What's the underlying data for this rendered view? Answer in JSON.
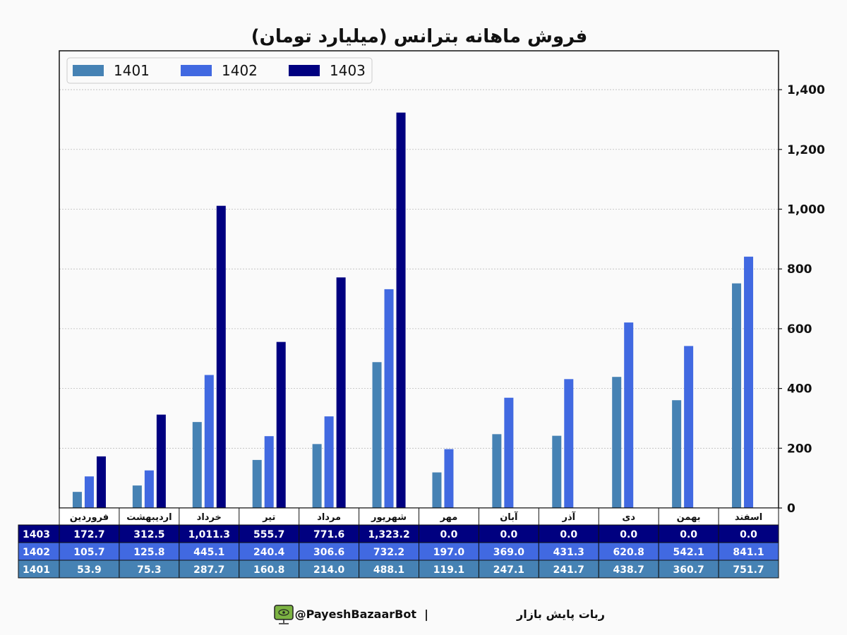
{
  "chart_data": {
    "type": "bar",
    "title": "فروش ماهانه بترانس (میلیارد تومان)",
    "categories": [
      "فروردین",
      "اردیبهشت",
      "خرداد",
      "تیر",
      "مرداد",
      "شهریور",
      "مهر",
      "آبان",
      "آذر",
      "دی",
      "بهمن",
      "اسفند"
    ],
    "series": [
      {
        "name": "1401",
        "color": "#4682b4",
        "values": [
          53.9,
          75.3,
          287.7,
          160.8,
          214.0,
          488.1,
          119.1,
          247.1,
          241.7,
          438.7,
          360.7,
          751.7
        ],
        "labels": [
          "53.9",
          "75.3",
          "287.7",
          "160.8",
          "214.0",
          "488.1",
          "119.1",
          "247.1",
          "241.7",
          "438.7",
          "360.7",
          "751.7"
        ]
      },
      {
        "name": "1402",
        "color": "#4169e1",
        "values": [
          105.7,
          125.8,
          445.1,
          240.4,
          306.6,
          732.2,
          197.0,
          369.0,
          431.3,
          620.8,
          542.1,
          841.1
        ],
        "labels": [
          "105.7",
          "125.8",
          "445.1",
          "240.4",
          "306.6",
          "732.2",
          "197.0",
          "369.0",
          "431.3",
          "620.8",
          "542.1",
          "841.1"
        ]
      },
      {
        "name": "1403",
        "color": "#000080",
        "values": [
          172.7,
          312.5,
          1011.3,
          555.7,
          771.6,
          1323.2,
          0.0,
          0.0,
          0.0,
          0.0,
          0.0,
          0.0
        ],
        "labels": [
          "172.7",
          "312.5",
          "1,011.3",
          "555.7",
          "771.6",
          "1,323.2",
          "0.0",
          "0.0",
          "0.0",
          "0.0",
          "0.0",
          "0.0"
        ]
      }
    ],
    "yticks": [
      0,
      200,
      400,
      600,
      800,
      1000,
      1200,
      1400
    ],
    "ytick_labels": [
      "0",
      "200",
      "400",
      "600",
      "800",
      "1,000",
      "1,200",
      "1,400"
    ],
    "ylim": [
      0,
      1530
    ],
    "y_axis_side": "right",
    "grid": true,
    "legend_placement": "top-left",
    "table_row_order": [
      "1403",
      "1402",
      "1401"
    ]
  },
  "footer": {
    "text": "ربات پایش بازار",
    "separator": "|",
    "handle": "@PayeshBazaarBot",
    "icon": "monitor-eye-icon"
  }
}
